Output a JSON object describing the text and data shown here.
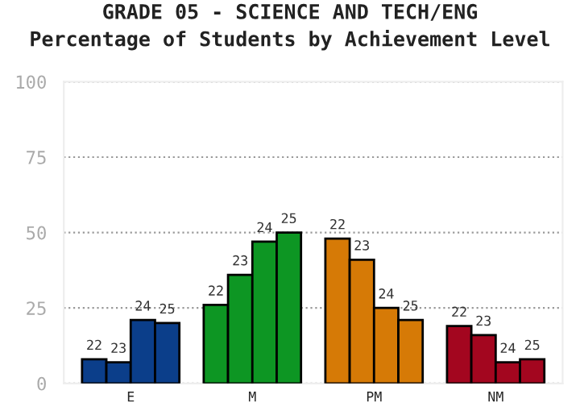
{
  "chart_data": {
    "type": "bar",
    "title": "GRADE 05 - SCIENCE AND TECH/ENG",
    "subtitle": "Percentage of Students by Achievement Level",
    "categories": [
      "E",
      "M",
      "PM",
      "NM"
    ],
    "series": [
      {
        "name": "22",
        "colors": [
          "#0b3e8a",
          "#0d9623",
          "#d67a06",
          "#a3061f"
        ],
        "values": [
          8,
          26,
          48,
          19
        ]
      },
      {
        "name": "23",
        "colors": [
          "#0b3e8a",
          "#0d9623",
          "#d67a06",
          "#a3061f"
        ],
        "values": [
          7,
          36,
          41,
          16
        ]
      },
      {
        "name": "24",
        "colors": [
          "#0b3e8a",
          "#0d9623",
          "#d67a06",
          "#a3061f"
        ],
        "values": [
          21,
          47,
          25,
          7
        ]
      },
      {
        "name": "25",
        "colors": [
          "#0b3e8a",
          "#0d9623",
          "#d67a06",
          "#a3061f"
        ],
        "values": [
          20,
          50,
          21,
          8
        ]
      }
    ],
    "ylim": [
      0,
      100
    ],
    "yticks": [
      0,
      25,
      50,
      75,
      100
    ],
    "grid": "y",
    "legend": false
  }
}
